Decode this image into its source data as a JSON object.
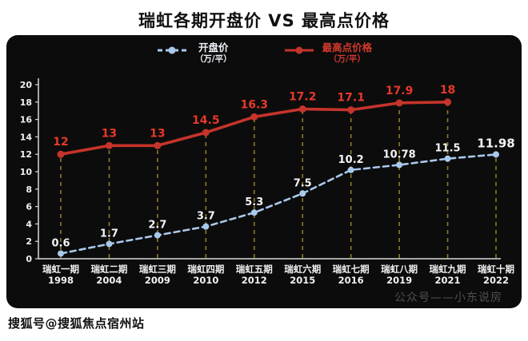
{
  "title": "瑞虹各期开盘价 VS 最高点价格",
  "watermarks": {
    "inner": "公众号——小东说房",
    "footer": "搜狐号@搜狐焦点宿州站"
  },
  "colors": {
    "panel_background": "#0c0c0c",
    "axis": "#d9d9d9",
    "guide_dashed": "#8e7a26",
    "open_series": "#a9c9ec",
    "high_series": "#c5342b",
    "high_label": "#e6382a",
    "text_light": "#f2f2f2"
  },
  "chart_data": {
    "type": "line",
    "title": "瑞虹各期开盘价 VS 最高点价格",
    "categories": [
      "瑞虹一期",
      "瑞虹二期",
      "瑞虹三期",
      "瑞虹四期",
      "瑞虹五期",
      "瑞虹六期",
      "瑞虹七期",
      "瑞虹八期",
      "瑞虹九期",
      "瑞虹十期"
    ],
    "years": [
      "1998",
      "2004",
      "2009",
      "2010",
      "2012",
      "2015",
      "2016",
      "2019",
      "2021",
      "2022"
    ],
    "series": [
      {
        "name": "开盘价",
        "unit": "（万/平）",
        "color": "#a9c9ec",
        "line_style": "dashed",
        "values": [
          0.6,
          1.7,
          2.7,
          3.7,
          5.3,
          7.5,
          10.2,
          10.78,
          11.5,
          11.98
        ]
      },
      {
        "name": "最高点价格",
        "unit": "（万/平）",
        "color": "#c5342b",
        "line_style": "solid",
        "values": [
          12,
          13,
          13,
          14.5,
          16.3,
          17.2,
          17.1,
          17.9,
          18,
          null
        ]
      }
    ],
    "ylim": [
      0,
      20
    ],
    "ytick_step": 2,
    "legend_position": "top",
    "grid": "vertical-dashed-guides",
    "background": "#0c0c0c"
  }
}
